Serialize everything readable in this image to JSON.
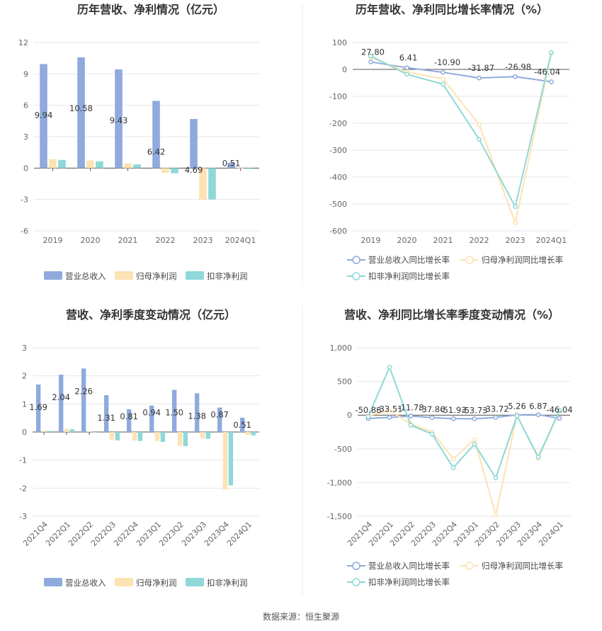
{
  "chart_data": [
    {
      "type": "bar",
      "title": "历年营收、净利情况（亿元）",
      "categories": [
        "2019",
        "2020",
        "2021",
        "2022",
        "2023",
        "2024Q1"
      ],
      "y_ticks": [
        "12",
        "9",
        "6",
        "3",
        "0",
        "-3",
        "-6"
      ],
      "ylim": [
        -6,
        12
      ],
      "series": [
        {
          "name": "营业总收入",
          "values": [
            9.94,
            10.58,
            9.43,
            6.42,
            4.69,
            0.51
          ],
          "color": "#8faadc"
        },
        {
          "name": "归母净利润",
          "values": [
            0.85,
            0.72,
            0.45,
            -0.45,
            -3.0,
            -0.05
          ],
          "color": "#fde2b3"
        },
        {
          "name": "扣非净利润",
          "values": [
            0.78,
            0.65,
            0.35,
            -0.5,
            -3.0,
            -0.08
          ],
          "color": "#8ed8d8"
        }
      ],
      "data_labels": [
        "9.94",
        "10.58",
        "9.43",
        "6.42",
        "4.69",
        "0.51"
      ],
      "legend": "bottom",
      "grid": true
    },
    {
      "type": "line",
      "title": "历年营收、净利同比增长率情况（%）",
      "categories": [
        "2019",
        "2020",
        "2021",
        "2022",
        "2023",
        "2024Q1"
      ],
      "y_ticks": [
        "100",
        "0",
        "-100",
        "-200",
        "-300",
        "-400",
        "-500",
        "-600"
      ],
      "ylim": [
        -600,
        100
      ],
      "series": [
        {
          "name": "营业总收入同比增长率",
          "values": [
            27.8,
            6.41,
            -10.9,
            -31.87,
            -26.98,
            -46.04
          ],
          "color": "#8faadc"
        },
        {
          "name": "归母净利润同比增长率",
          "values": [
            45,
            -10,
            -35,
            -205,
            -570,
            60
          ],
          "color": "#fde2b3"
        },
        {
          "name": "扣非净利润同比增长率",
          "values": [
            50,
            -18,
            -55,
            -260,
            -510,
            63
          ],
          "color": "#8ed8d8"
        }
      ],
      "data_labels": [
        "27.80",
        "6.41",
        "-10.90",
        "-31.87",
        "-26.98",
        "-46.04"
      ],
      "legend": "bottom",
      "grid": true
    },
    {
      "type": "bar",
      "title": "营收、净利季度变动情况（亿元）",
      "categories": [
        "2021Q4",
        "2022Q1",
        "2022Q2",
        "2022Q3",
        "2022Q4",
        "2023Q1",
        "2023Q2",
        "2023Q3",
        "2023Q4",
        "2024Q1"
      ],
      "y_ticks": [
        "3",
        "2",
        "1",
        "0",
        "-1",
        "-2",
        "-3"
      ],
      "ylim": [
        -3,
        3
      ],
      "series": [
        {
          "name": "营业总收入",
          "values": [
            1.69,
            2.04,
            2.26,
            1.31,
            0.81,
            0.94,
            1.5,
            1.38,
            0.87,
            0.51
          ],
          "color": "#8faadc"
        },
        {
          "name": "归母净利润",
          "values": [
            0.05,
            0.12,
            0.02,
            -0.28,
            -0.3,
            -0.32,
            -0.48,
            -0.22,
            -2.05,
            -0.1
          ],
          "color": "#fde2b3"
        },
        {
          "name": "扣非净利润",
          "values": [
            0.04,
            0.1,
            -0.02,
            -0.3,
            -0.32,
            -0.35,
            -0.5,
            -0.24,
            -1.9,
            -0.12
          ],
          "color": "#8ed8d8"
        }
      ],
      "data_labels": [
        "1.69",
        "2.04",
        "2.26",
        "1.31",
        "0.81",
        "0.94",
        "1.50",
        "1.38",
        "0.87",
        "0.51"
      ],
      "legend": "bottom",
      "grid": true
    },
    {
      "type": "line",
      "title": "营收、净利同比增长率季度变动情况（%）",
      "categories": [
        "2021Q4",
        "2022Q1",
        "2022Q2",
        "2022Q3",
        "2022Q4",
        "2023Q1",
        "2023Q2",
        "2023Q3",
        "2023Q4",
        "2024Q1"
      ],
      "y_ticks": [
        "1,000",
        "500",
        "0",
        "-500",
        "-1,000",
        "-1,500"
      ],
      "ylim": [
        -1500,
        1000
      ],
      "series": [
        {
          "name": "营业总收入同比增长率",
          "values": [
            -50.88,
            -33.51,
            -11.78,
            -37.86,
            -51.93,
            -53.73,
            -33.72,
            5.26,
            6.87,
            -46.04
          ],
          "color": "#8faadc"
        },
        {
          "name": "归母净利润同比增长率",
          "values": [
            -10,
            70,
            -130,
            -250,
            -650,
            -360,
            -1480,
            0,
            -640,
            60
          ],
          "color": "#fde2b3"
        },
        {
          "name": "扣非净利润同比增长率",
          "values": [
            -20,
            710,
            -150,
            -280,
            -780,
            -430,
            -930,
            -10,
            -620,
            70
          ],
          "color": "#8ed8d8"
        }
      ],
      "data_labels": [
        "-50.88",
        "-33.51",
        "-11.78",
        "-37.86",
        "-51.93",
        "-53.73",
        "-33.72",
        "5.26",
        "6.87",
        "-46.04"
      ],
      "legend": "bottom",
      "grid": true
    }
  ],
  "source": "数据来源：恒生聚源"
}
